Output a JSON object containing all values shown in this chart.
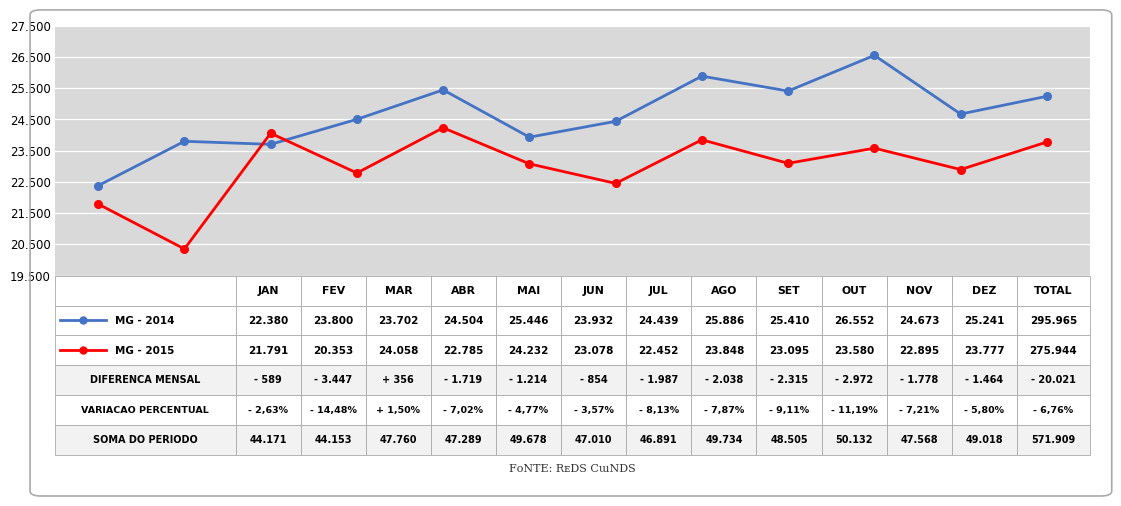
{
  "months": [
    "JAN",
    "FEV",
    "MAR",
    "ABR",
    "MAI",
    "JUN",
    "JUL",
    "AGO",
    "SET",
    "OUT",
    "NOV",
    "DEZ",
    "TOTAL"
  ],
  "mg2014": [
    22380,
    23800,
    23702,
    24504,
    25446,
    23932,
    24439,
    25886,
    25410,
    26552,
    24673,
    25241
  ],
  "mg2015": [
    21791,
    20353,
    24058,
    22785,
    24232,
    23078,
    22452,
    23848,
    23095,
    23580,
    22895,
    23777
  ],
  "mg2014_total": 295965,
  "mg2015_total": 275944,
  "color_2014": "#4472C4",
  "color_2015": "#FF0000",
  "ylim_min": 19500,
  "ylim_max": 27500,
  "yticks": [
    19500,
    20500,
    21500,
    22500,
    23500,
    24500,
    25500,
    26500,
    27500
  ],
  "table_rows": [
    [
      "MG - 2014",
      "22.380",
      "23.800",
      "23.702",
      "24.504",
      "25.446",
      "23.932",
      "24.439",
      "25.886",
      "25.410",
      "26.552",
      "24.673",
      "25.241",
      "295.965"
    ],
    [
      "MG - 2015",
      "21.791",
      "20.353",
      "24.058",
      "22.785",
      "24.232",
      "23.078",
      "22.452",
      "23.848",
      "23.095",
      "23.580",
      "22.895",
      "23.777",
      "275.944"
    ],
    [
      "DIFERENCA MENSAL",
      "- 589",
      "- 3.447",
      "+ 356",
      "- 1.719",
      "- 1.214",
      "- 854",
      "- 1.987",
      "- 2.038",
      "- 2.315",
      "- 2.972",
      "- 1.778",
      "- 1.464",
      "- 20.021"
    ],
    [
      "VARIACAO PERCENTUAL",
      "- 2,63%",
      "- 14,48%",
      "+ 1,50%",
      "- 7,02%",
      "- 4,77%",
      "- 3,57%",
      "- 8,13%",
      "- 7,87%",
      "- 9,11%",
      "- 11,19%",
      "- 7,21%",
      "- 5,80%",
      "- 6,76%"
    ],
    [
      "SOMA DO PERIODO",
      "44.171",
      "44.153",
      "47.760",
      "47.289",
      "49.678",
      "47.010",
      "46.891",
      "49.734",
      "48.505",
      "50.132",
      "47.568",
      "49.018",
      "571.909"
    ]
  ],
  "col_header": [
    "",
    "JAN",
    "FEV",
    "MAR",
    "ABR",
    "MAI",
    "JUN",
    "JUL",
    "AGO",
    "SET",
    "OUT",
    "NOV",
    "DEZ",
    "TOTAL"
  ],
  "fonte_text": "Fonte: Reds Cinds",
  "chart_bg": "#D9D9D9",
  "outer_bg": "#FFFFFF",
  "table_bg_white": "#FFFFFF",
  "table_bg_gray": "#F2F2F2"
}
